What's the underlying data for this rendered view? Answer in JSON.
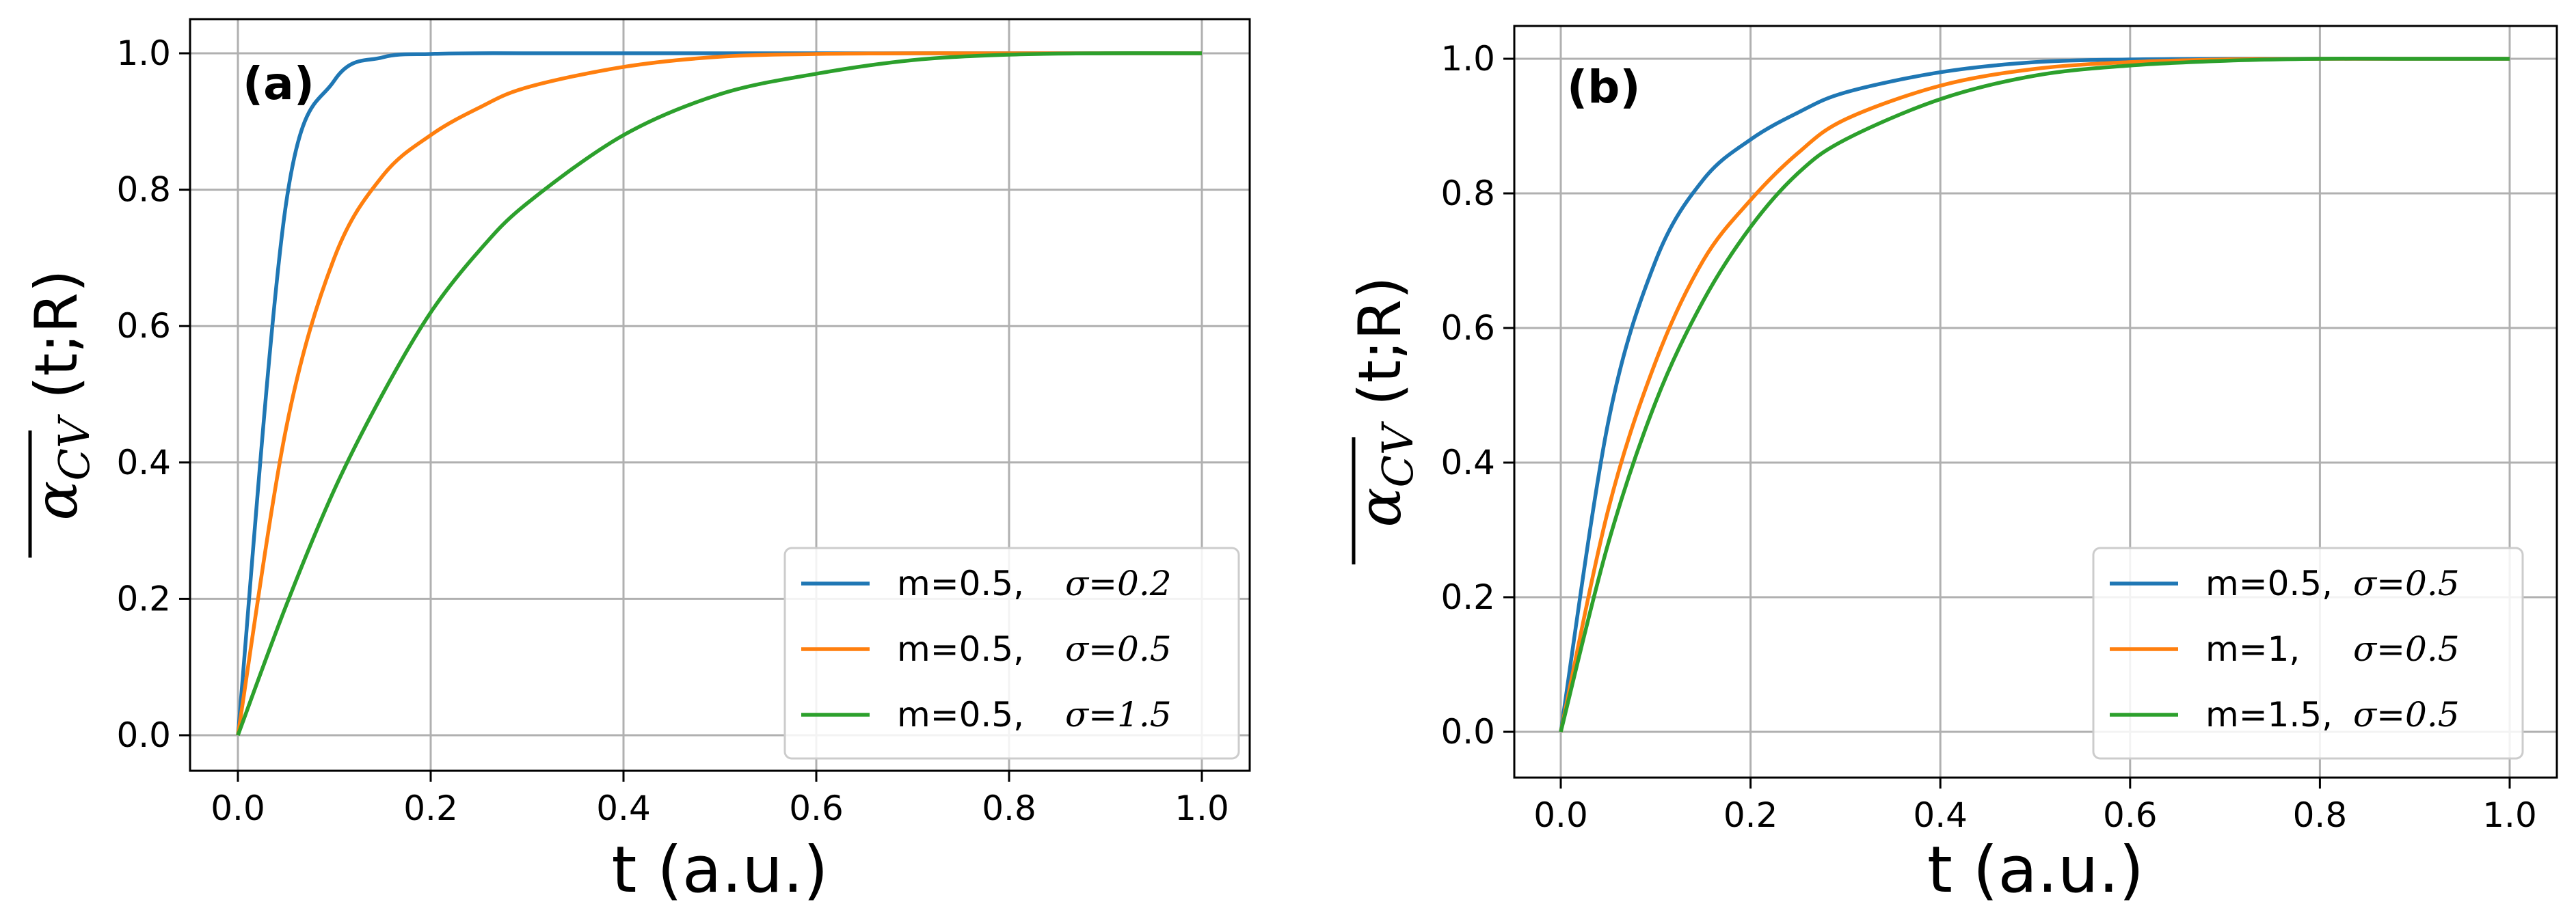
{
  "chart_data": [
    {
      "type": "line",
      "panel_label": "(a)",
      "xlabel": "t (a.u.)",
      "ylabel": {
        "symbol": "α",
        "subscript": "CV",
        "args": " (t;R)"
      },
      "xlim": [
        0.0,
        1.0
      ],
      "ylim": [
        0.0,
        1.0
      ],
      "xticks": [
        "0.0",
        "0.2",
        "0.4",
        "0.6",
        "0.8",
        "1.0"
      ],
      "yticks": [
        "0.0",
        "0.2",
        "0.4",
        "0.6",
        "0.8",
        "1.0"
      ],
      "grid": true,
      "legend_position": "lower-right",
      "x": [
        0.0,
        0.05,
        0.1,
        0.15,
        0.2,
        0.25,
        0.3,
        0.4,
        0.5,
        0.6,
        0.7,
        0.8,
        0.9,
        1.0
      ],
      "series": [
        {
          "name": "m=0.5,",
          "sigma": "σ=0.2",
          "color": "#1f77b4",
          "values": [
            0.0,
            0.78,
            0.96,
            0.994,
            0.999,
            1.0,
            1.0,
            1.0,
            1.0,
            1.0,
            1.0,
            1.0,
            1.0,
            1.0
          ]
        },
        {
          "name": "m=0.5,",
          "sigma": "σ=0.5",
          "color": "#ff7f0e",
          "values": [
            0.0,
            0.45,
            0.7,
            0.82,
            0.88,
            0.92,
            0.95,
            0.98,
            0.995,
            0.999,
            1.0,
            1.0,
            1.0,
            1.0
          ]
        },
        {
          "name": "m=0.5,",
          "sigma": "σ=1.5",
          "color": "#2ca02c",
          "values": [
            0.0,
            0.19,
            0.36,
            0.5,
            0.62,
            0.71,
            0.78,
            0.88,
            0.94,
            0.97,
            0.99,
            0.998,
            1.0,
            1.0
          ]
        }
      ]
    },
    {
      "type": "line",
      "panel_label": "(b)",
      "xlabel": "t (a.u.)",
      "ylabel": {
        "symbol": "α",
        "subscript": "CV",
        "args": " (t;R)"
      },
      "xlim": [
        0.0,
        1.0
      ],
      "ylim": [
        0.0,
        1.0
      ],
      "xticks": [
        "0.0",
        "0.2",
        "0.4",
        "0.6",
        "0.8",
        "1.0"
      ],
      "yticks": [
        "0.0",
        "0.2",
        "0.4",
        "0.6",
        "0.8",
        "1.0"
      ],
      "grid": true,
      "legend_position": "lower-right",
      "x": [
        0.0,
        0.05,
        0.1,
        0.15,
        0.2,
        0.25,
        0.3,
        0.4,
        0.5,
        0.6,
        0.7,
        0.8,
        0.9,
        1.0
      ],
      "series": [
        {
          "name": "m=0.5,",
          "sigma": "σ=0.5",
          "color": "#1f77b4",
          "values": [
            0.0,
            0.46,
            0.7,
            0.82,
            0.88,
            0.92,
            0.95,
            0.98,
            0.995,
            0.999,
            1.0,
            1.0,
            1.0,
            1.0
          ]
        },
        {
          "name": "m=1,",
          "sigma": "σ=0.5",
          "color": "#ff7f0e",
          "values": [
            0.0,
            0.33,
            0.55,
            0.7,
            0.79,
            0.86,
            0.91,
            0.96,
            0.985,
            0.995,
            0.999,
            1.0,
            1.0,
            1.0
          ]
        },
        {
          "name": "m=1.5,",
          "sigma": "σ=0.5",
          "color": "#2ca02c",
          "values": [
            0.0,
            0.28,
            0.49,
            0.64,
            0.75,
            0.83,
            0.88,
            0.94,
            0.975,
            0.99,
            0.997,
            1.0,
            1.0,
            1.0
          ]
        }
      ]
    }
  ]
}
